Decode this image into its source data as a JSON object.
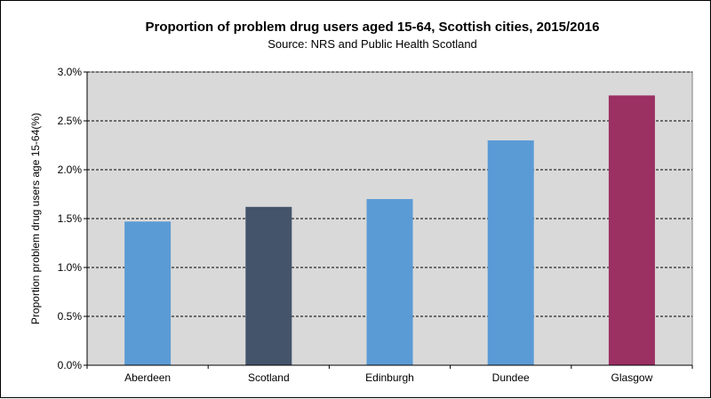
{
  "chart_data": {
    "type": "bar",
    "title": "Proportion of problem drug users aged 15-64, Scottish cities, 2015/2016",
    "subtitle": "Source: NRS and Public Health Scotland",
    "xlabel": "",
    "ylabel": "Proportion problem drug users age 15-64(%)",
    "ylim": [
      0,
      3.0
    ],
    "yticks": [
      0,
      0.5,
      1.0,
      1.5,
      2.0,
      2.5,
      3.0
    ],
    "ytick_labels": [
      "0.0%",
      "0.5%",
      "1.0%",
      "1.5%",
      "2.0%",
      "2.5%",
      "3.0%"
    ],
    "categories": [
      "Aberdeen",
      "Scotland",
      "Edinburgh",
      "Dundee",
      "Glasgow"
    ],
    "values": [
      1.47,
      1.62,
      1.7,
      2.3,
      2.76
    ],
    "bar_colors": [
      "#5b9bd5",
      "#44546a",
      "#5b9bd5",
      "#5b9bd5",
      "#9b3063"
    ],
    "plot_background": "#d9d9d9",
    "grid": true,
    "legend": "none"
  }
}
